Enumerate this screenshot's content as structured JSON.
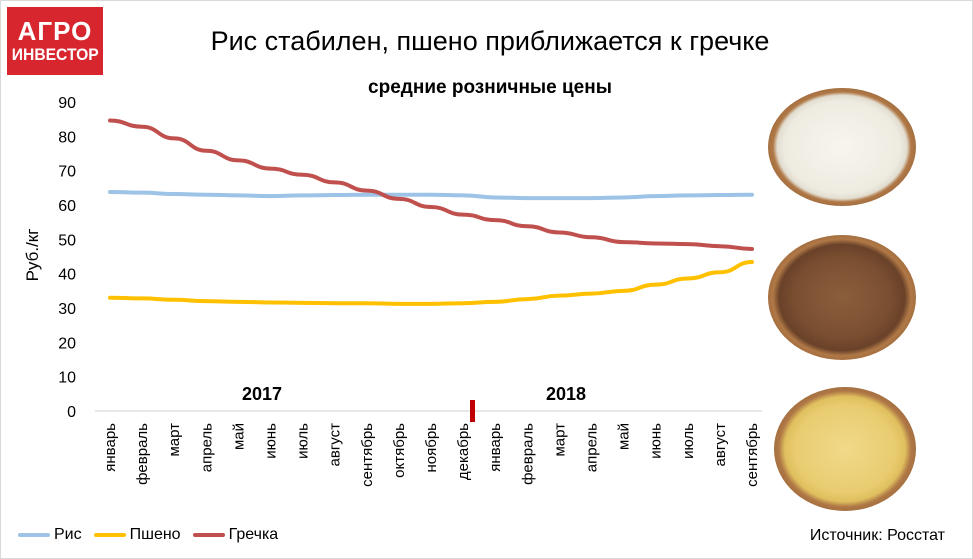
{
  "logo": {
    "line1": "АГРО",
    "line2": "ИНВЕСТОР"
  },
  "title": "Рис стабилен, пшено приближается к гречке",
  "subtitle": "средние розничные цены",
  "source": "Источник: Росстат",
  "chart_data": {
    "type": "line",
    "title": "Рис стабилен, пшено приближается к гречке",
    "subtitle": "средние розничные цены",
    "ylabel": "Руб./кг",
    "xlabel": "",
    "ylim": [
      0,
      90
    ],
    "yticks": [
      0,
      10,
      20,
      30,
      40,
      50,
      60,
      70,
      80,
      90
    ],
    "grid": false,
    "legend": "bottom-left",
    "year_labels": [
      "2017",
      "2018"
    ],
    "categories": [
      "январь",
      "февраль",
      "март",
      "апрель",
      "май",
      "июнь",
      "июль",
      "август",
      "сентябрь",
      "октябрь",
      "ноябрь",
      "декабрь",
      "январь",
      "февраль",
      "март",
      "апрель",
      "май",
      "июнь",
      "июль",
      "август",
      "сентябрь"
    ],
    "series": [
      {
        "name": "Рис",
        "color": "#9dc3e6",
        "values": [
          63.8,
          63.6,
          63.2,
          63.0,
          62.8,
          62.6,
          62.8,
          62.9,
          63.0,
          63.0,
          63.0,
          62.8,
          62.2,
          62.0,
          62.0,
          62.0,
          62.2,
          62.6,
          62.8,
          62.9,
          63.0
        ]
      },
      {
        "name": "Пшено",
        "color": "#ffc000",
        "values": [
          33.0,
          32.8,
          32.4,
          32.0,
          31.8,
          31.6,
          31.5,
          31.4,
          31.4,
          31.2,
          31.2,
          31.4,
          31.8,
          32.6,
          33.6,
          34.2,
          35.0,
          36.8,
          38.6,
          40.4,
          43.4
        ]
      },
      {
        "name": "Гречка",
        "color": "#c0504d",
        "values": [
          84.6,
          82.8,
          79.4,
          75.8,
          73.0,
          70.6,
          68.8,
          66.6,
          64.2,
          61.8,
          59.4,
          57.2,
          55.6,
          53.8,
          52.0,
          50.6,
          49.2,
          48.8,
          48.6,
          48.0,
          47.2
        ]
      }
    ]
  }
}
